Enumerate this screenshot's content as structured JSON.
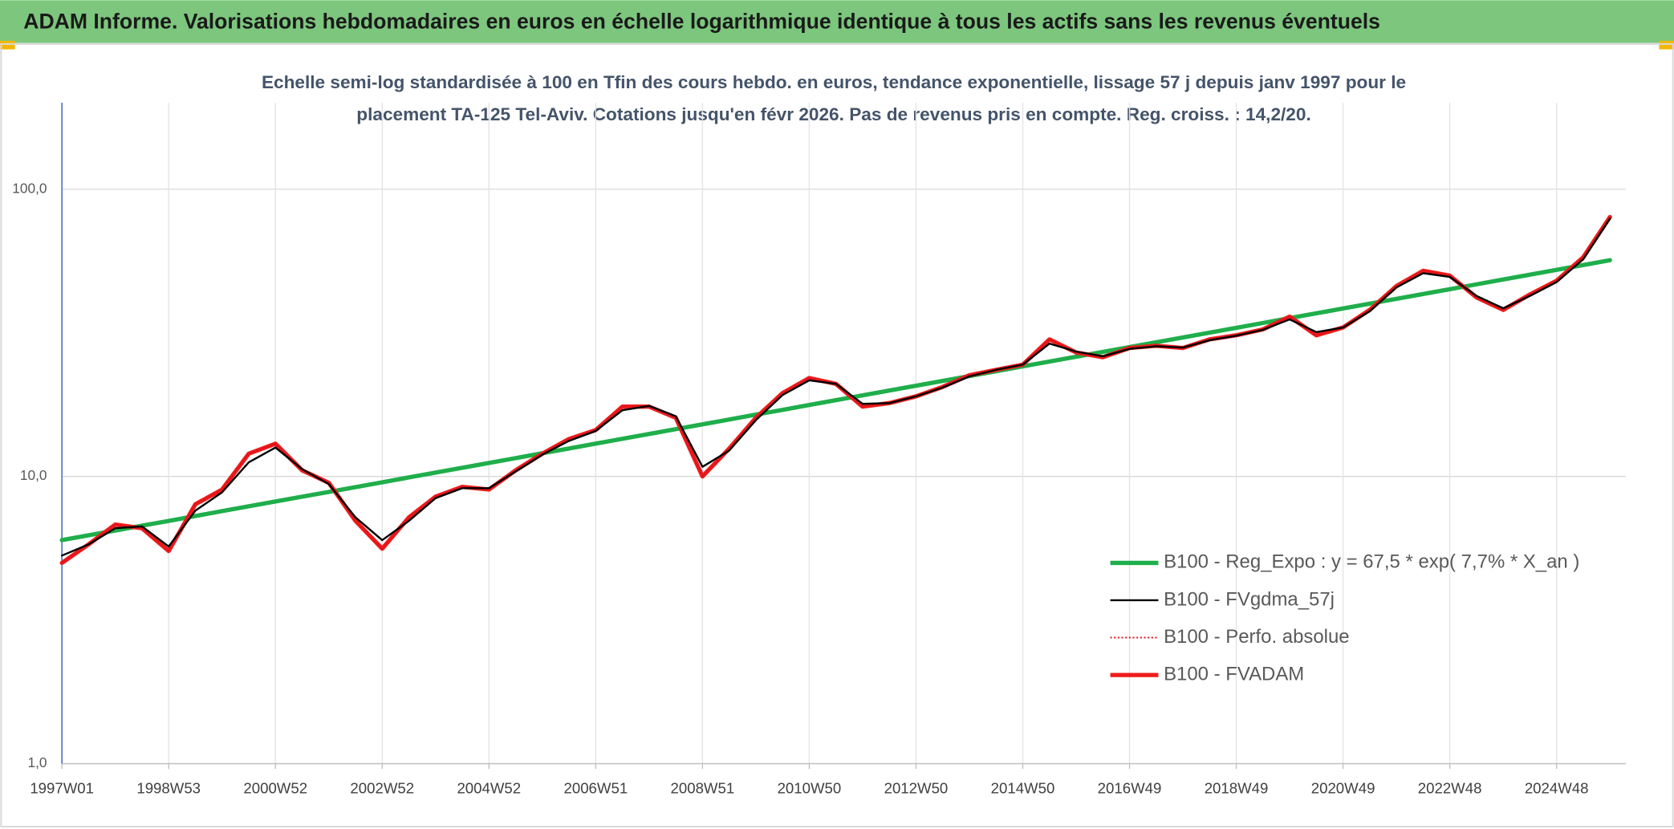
{
  "chart_data": {
    "type": "line",
    "title": "ADAM Informe. Valorisations hebdomadaires en euros en échelle logarithmique identique à tous les actifs sans les revenus éventuels",
    "subtitle": [
      "Echelle semi-log standardisée à 100 en Tfin des cours hebdo. en euros, tendance exponentielle, lissage 57 j depuis janv 1997 pour le",
      "placement TA-125 Tel-Aviv. Cotations jusqu'en févr 2026. Pas de revenus pris en compte. Reg. croiss. : 14,2/20."
    ],
    "log_scale": true,
    "grid": true,
    "legend": "lower right",
    "ylim": [
      1,
      200
    ],
    "yticks": [
      {
        "value": 1,
        "label": "1,0"
      },
      {
        "value": 10,
        "label": "10,0"
      },
      {
        "value": 100,
        "label": "100,0"
      }
    ],
    "categories": [
      "1997W01",
      null,
      null,
      null,
      "1998W53",
      null,
      null,
      null,
      "2000W52",
      null,
      null,
      null,
      "2002W52",
      null,
      null,
      null,
      "2004W52",
      null,
      null,
      null,
      "2006W51",
      null,
      null,
      null,
      "2008W51",
      null,
      null,
      null,
      "2010W50",
      null,
      null,
      null,
      "2012W50",
      null,
      null,
      null,
      "2014W50",
      null,
      null,
      null,
      "2016W49",
      null,
      null,
      null,
      "2018W49",
      null,
      null,
      null,
      "2020W49",
      null,
      null,
      null,
      "2022W48",
      null,
      null,
      null,
      "2024W48",
      null,
      null
    ],
    "series": [
      {
        "name": "B100 - Reg_Expo : y = 67,5 * exp( 7,7% *  X_an )",
        "color": "#1fae4b",
        "style": "thick",
        "values": [
          6.0,
          6.24,
          6.48,
          6.74,
          7.0,
          7.28,
          7.57,
          7.87,
          8.18,
          8.5,
          8.83,
          9.18,
          9.54,
          9.92,
          10.31,
          10.72,
          11.14,
          11.58,
          12.04,
          12.51,
          13.01,
          13.52,
          14.05,
          14.61,
          15.18,
          15.78,
          16.41,
          17.05,
          17.73,
          18.43,
          19.15,
          19.91,
          20.69,
          21.51,
          22.36,
          23.24,
          24.16,
          25.11,
          26.1,
          27.13,
          28.2,
          29.31,
          30.47,
          31.67,
          32.92,
          34.22,
          35.57,
          36.97,
          38.43,
          39.95,
          41.53,
          43.17,
          44.87,
          46.64,
          48.48,
          50.39,
          52.38,
          54.45,
          56.6
        ]
      },
      {
        "name": "B100 - FVgdma_57j",
        "color": "#000000",
        "style": "thin",
        "values": [
          5.3,
          5.8,
          6.6,
          6.7,
          5.7,
          7.6,
          8.8,
          11.2,
          12.6,
          10.6,
          9.4,
          7.2,
          6.0,
          7.0,
          8.4,
          9.1,
          9.1,
          10.4,
          11.9,
          13.3,
          14.4,
          17.0,
          17.6,
          16.2,
          10.8,
          12.3,
          15.7,
          19.2,
          21.6,
          21.0,
          17.9,
          18.0,
          19.0,
          20.4,
          22.3,
          23.5,
          24.5,
          29.0,
          27.2,
          26.2,
          27.8,
          28.4,
          28.1,
          29.8,
          30.9,
          32.4,
          35.2,
          31.8,
          33.0,
          37.6,
          45.5,
          51.0,
          49.5,
          42.5,
          38.5,
          42.5,
          47.5,
          57.0,
          79.0
        ]
      },
      {
        "name": "B100 - Perfo. absolue",
        "color": "#e3121b",
        "style": "dotted",
        "values": [
          5.0,
          5.8,
          6.8,
          6.6,
          5.5,
          8.0,
          9.0,
          12.0,
          13.0,
          10.5,
          9.5,
          7.0,
          5.6,
          7.2,
          8.5,
          9.2,
          9.0,
          10.5,
          12.0,
          13.5,
          14.5,
          17.5,
          17.5,
          16.0,
          10.0,
          12.5,
          16.0,
          19.5,
          22.0,
          21.0,
          17.5,
          18.0,
          19.0,
          20.5,
          22.5,
          23.5,
          24.5,
          30.0,
          27.0,
          26.0,
          28.0,
          28.5,
          28.0,
          30.0,
          31.0,
          32.5,
          36.0,
          31.0,
          33.0,
          38.0,
          46.0,
          52.0,
          50.0,
          42.0,
          38.0,
          43.0,
          48.0,
          58.0,
          80.0
        ]
      },
      {
        "name": "B100 - FVADAM",
        "color": "#ee1c1c",
        "style": "thick",
        "values": [
          5.0,
          5.8,
          6.8,
          6.6,
          5.5,
          8.0,
          9.0,
          12.0,
          13.0,
          10.5,
          9.5,
          7.0,
          5.6,
          7.2,
          8.5,
          9.2,
          9.0,
          10.5,
          12.0,
          13.5,
          14.5,
          17.5,
          17.5,
          16.0,
          10.0,
          12.5,
          16.0,
          19.5,
          22.0,
          21.0,
          17.5,
          18.0,
          19.0,
          20.5,
          22.5,
          23.5,
          24.5,
          30.0,
          27.0,
          26.0,
          28.0,
          28.5,
          28.0,
          30.0,
          31.0,
          32.5,
          36.0,
          31.0,
          33.0,
          38.0,
          46.0,
          52.0,
          50.0,
          42.0,
          38.0,
          43.0,
          48.0,
          58.0,
          80.0
        ]
      }
    ]
  }
}
